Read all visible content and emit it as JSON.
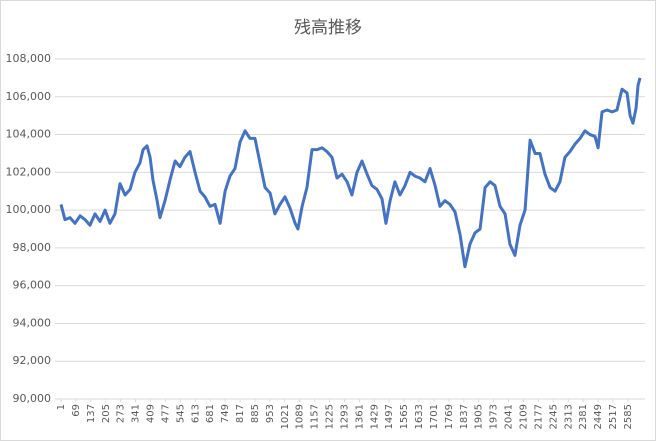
{
  "chart_data": {
    "type": "line",
    "title": "残高推移",
    "x": [
      1,
      19,
      42,
      65,
      88,
      110,
      133,
      156,
      179,
      202,
      224,
      247,
      270,
      293,
      316,
      338,
      361,
      375,
      393,
      407,
      420,
      439,
      452,
      475,
      498,
      521,
      543,
      566,
      589,
      612,
      635,
      657,
      680,
      703,
      726,
      749,
      771,
      794,
      817,
      840,
      862,
      885,
      908,
      931,
      954,
      976,
      999,
      1022,
      1045,
      1068,
      1081,
      1100,
      1122,
      1145,
      1168,
      1191,
      1213,
      1236,
      1259,
      1282,
      1305,
      1327,
      1350,
      1373,
      1396,
      1418,
      1441,
      1464,
      1482,
      1501,
      1523,
      1546,
      1569,
      1592,
      1614,
      1637,
      1660,
      1683,
      1706,
      1728,
      1751,
      1774,
      1797,
      1820,
      1842,
      1865,
      1888,
      1911,
      1934,
      1957,
      1979,
      2002,
      2025,
      2047,
      2070,
      2093,
      2116,
      2139,
      2162,
      2184,
      2207,
      2230,
      2253,
      2275,
      2298,
      2321,
      2344,
      2367,
      2389,
      2412,
      2435,
      2449,
      2467,
      2490,
      2513,
      2535,
      2558,
      2581,
      2595,
      2608,
      2622,
      2631,
      2640
    ],
    "series": [
      {
        "color": "#4472c4",
        "values": [
          100300,
          99500,
          99600,
          99300,
          99700,
          99500,
          99200,
          99800,
          99400,
          100000,
          99300,
          99800,
          101400,
          100800,
          101100,
          102000,
          102500,
          103200,
          103400,
          102800,
          101600,
          100500,
          99600,
          100500,
          101600,
          102600,
          102300,
          102800,
          103100,
          102000,
          101000,
          100700,
          100200,
          100300,
          99300,
          101000,
          101800,
          102200,
          103600,
          104200,
          103800,
          103800,
          102500,
          101200,
          100900,
          99800,
          100300,
          100700,
          100100,
          99300,
          99000,
          100200,
          101200,
          103200,
          103200,
          103300,
          103100,
          102800,
          101700,
          101900,
          101500,
          100800,
          102000,
          102600,
          101900,
          101300,
          101100,
          100600,
          99300,
          100500,
          101500,
          100800,
          101300,
          102000,
          101800,
          101700,
          101500,
          102200,
          101300,
          100200,
          100500,
          100300,
          99900,
          98700,
          97000,
          98200,
          98800,
          99000,
          101200,
          101500,
          101300,
          100200,
          99800,
          98200,
          97600,
          99200,
          100000,
          103700,
          103000,
          103000,
          101900,
          101200,
          101000,
          101500,
          102800,
          103100,
          103500,
          103800,
          104200,
          104000,
          103900,
          103300,
          105200,
          105300,
          105200,
          105300,
          106400,
          106200,
          105000,
          104600,
          105400,
          106600,
          107000
        ]
      }
    ],
    "xlim": [
      1,
      2640
    ],
    "xticks": [
      1,
      69,
      137,
      205,
      273,
      341,
      409,
      477,
      545,
      613,
      681,
      749,
      817,
      885,
      953,
      1021,
      1089,
      1157,
      1225,
      1293,
      1361,
      1429,
      1497,
      1565,
      1633,
      1701,
      1769,
      1837,
      1905,
      1973,
      2041,
      2109,
      2177,
      2245,
      2313,
      2381,
      2449,
      2517,
      2585
    ],
    "ylim": [
      90000,
      108000
    ],
    "yticks": [
      {
        "value": 90000,
        "label": "90,000"
      },
      {
        "value": 92000,
        "label": "92,000"
      },
      {
        "value": 94000,
        "label": "94,000"
      },
      {
        "value": 96000,
        "label": "96,000"
      },
      {
        "value": 98000,
        "label": "98,000"
      },
      {
        "value": 100000,
        "label": "100,000"
      },
      {
        "value": 102000,
        "label": "102,000"
      },
      {
        "value": 104000,
        "label": "104,000"
      },
      {
        "value": 106000,
        "label": "106,000"
      },
      {
        "value": 108000,
        "label": "108,000"
      }
    ],
    "grid": true
  }
}
